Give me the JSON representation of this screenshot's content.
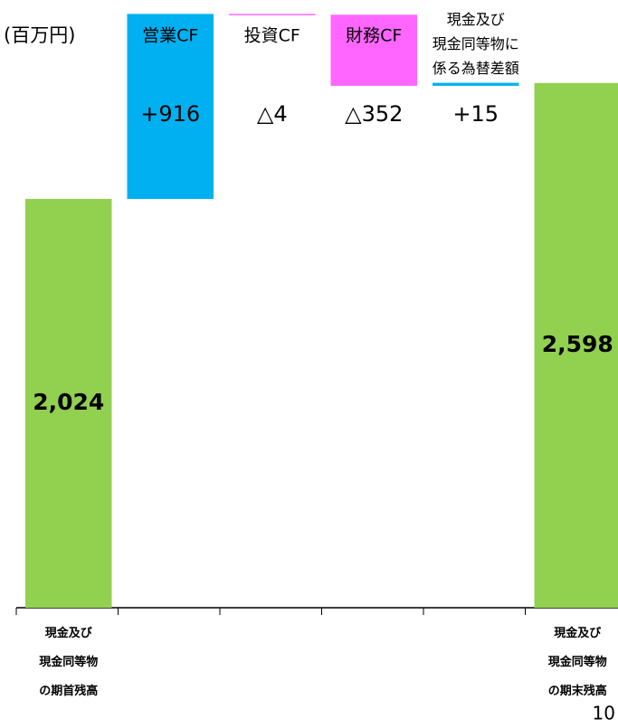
{
  "chart_data": {
    "type": "waterfall",
    "unit_label": "(百万円)",
    "categories": [
      "現金及び\n現金同等物\nの期首残高",
      "営業CF",
      "投資CF",
      "財務CF",
      "現金及び\n現金同等物に\n係る為替差額",
      "現金及び\n現金同等物\nの期末残高"
    ],
    "values": [
      2024,
      916,
      -4,
      -352,
      15,
      2598
    ],
    "value_labels": [
      "2,024",
      "+916",
      "△4",
      "△352",
      "+15",
      "2,598"
    ],
    "colors": [
      "#92d050",
      "#00b0f0",
      "#ff66ff",
      "#ff66ff",
      "#00b0f0",
      "#92d050"
    ],
    "ylim": [
      0,
      3000
    ],
    "page_number": "10"
  }
}
